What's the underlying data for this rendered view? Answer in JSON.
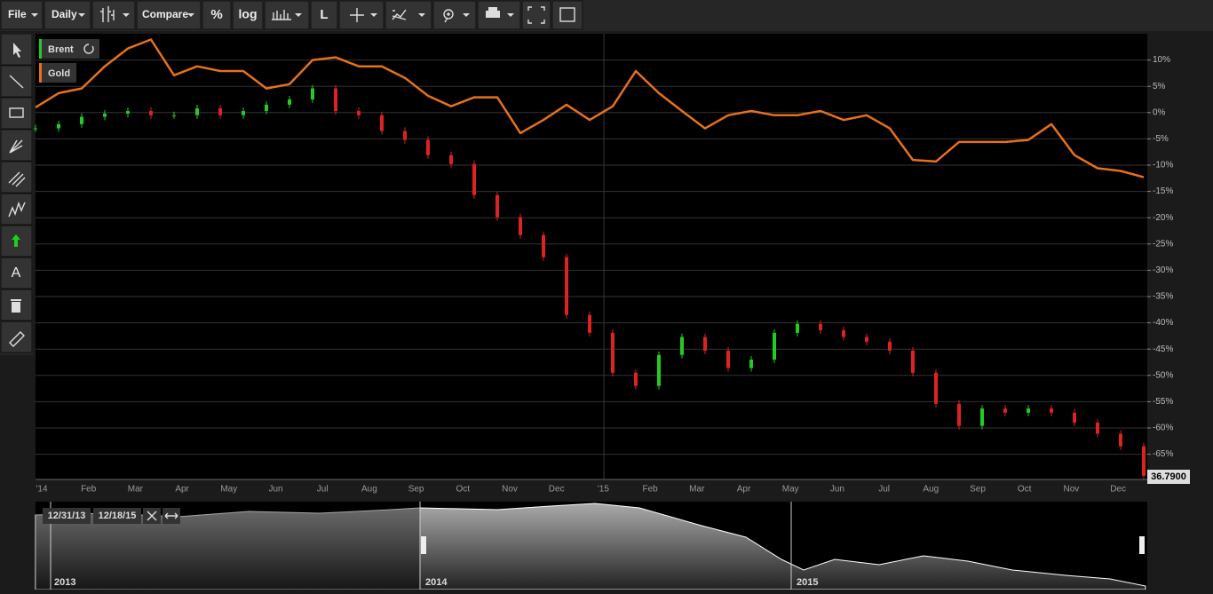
{
  "toolbar": {
    "file": "File",
    "interval": "Daily",
    "compare": "Compare",
    "percent": "%",
    "log": "log",
    "line_tool": "L"
  },
  "drawing_tools": {
    "text_tool": "A"
  },
  "chart_data": {
    "type": "line",
    "series": [
      {
        "name": "Brent",
        "type": "candlestick",
        "color": "#22cc22",
        "up_color": "#22cc22",
        "down_color": "#dd2222",
        "values": [
          -3.0,
          -2.2,
          -0.8,
          -0.2,
          0.3,
          -0.5,
          -0.5,
          0.8,
          -0.5,
          0.3,
          1.5,
          2.5,
          4.6,
          0.3,
          -0.5,
          -3.5,
          -5.2,
          -8.1,
          -9.8,
          -15.7,
          -19.9,
          -23.3,
          -27.5,
          -38.5,
          -41.9,
          -49.5,
          -52.0,
          -46.1,
          -42.7,
          -45.3,
          -48.6,
          -47.0,
          -41.9,
          -40.2,
          -41.4,
          -42.7,
          -43.6,
          -45.3,
          -49.5,
          -55.4,
          -59.6,
          -56.3,
          -57.1,
          -56.3,
          -57.1,
          -59.0,
          -61.1,
          -63.5,
          -69.1
        ]
      },
      {
        "name": "Gold",
        "type": "line",
        "color": "#e8701a",
        "values": [
          1.0,
          3.7,
          4.6,
          8.8,
          12.2,
          13.9,
          7.1,
          8.8,
          7.9,
          7.9,
          4.6,
          5.4,
          10.0,
          10.5,
          8.8,
          8.8,
          6.6,
          3.2,
          1.2,
          2.9,
          2.9,
          -3.9,
          -1.4,
          1.5,
          -1.4,
          1.2,
          7.9,
          3.7,
          0.3,
          -3.0,
          -0.5,
          0.3,
          -0.5,
          -0.5,
          0.3,
          -1.4,
          -0.5,
          -3.0,
          -9.0,
          -9.3,
          -5.6,
          -5.6,
          -5.6,
          -5.2,
          -2.2,
          -8.1,
          -10.6,
          -11.1,
          -12.3
        ]
      }
    ],
    "xticks": [
      "'14",
      "Feb",
      "Mar",
      "Apr",
      "May",
      "Jun",
      "Jul",
      "Aug",
      "Sep",
      "Oct",
      "Nov",
      "Dec",
      "'15",
      "Feb",
      "Mar",
      "Apr",
      "May",
      "Jun",
      "Jul",
      "Aug",
      "Sep",
      "Oct",
      "Nov",
      "Dec"
    ],
    "ylim": [
      -69.8,
      15
    ],
    "yticks": [
      {
        "value": 10,
        "label": "10%"
      },
      {
        "value": 5,
        "label": "5%"
      },
      {
        "value": 0,
        "label": "0%"
      },
      {
        "value": -5,
        "label": "-5%"
      },
      {
        "value": -10,
        "label": "-10%"
      },
      {
        "value": -15,
        "label": "-15%"
      },
      {
        "value": -20,
        "label": "-20%"
      },
      {
        "value": -25,
        "label": "-25%"
      },
      {
        "value": -30,
        "label": "-30%"
      },
      {
        "value": -35,
        "label": "-35%"
      },
      {
        "value": -40,
        "label": "-40%"
      },
      {
        "value": -45,
        "label": "-45%"
      },
      {
        "value": -50,
        "label": "-50%"
      },
      {
        "value": -55,
        "label": "-55%"
      },
      {
        "value": -60,
        "label": "-60%"
      },
      {
        "value": -65,
        "label": "-65%"
      }
    ],
    "grid": true,
    "last_value_label": "36.7900"
  },
  "navigator": {
    "start": "12/31/13",
    "end": "12/18/15",
    "years": [
      "2013",
      "2014",
      "2015"
    ]
  }
}
